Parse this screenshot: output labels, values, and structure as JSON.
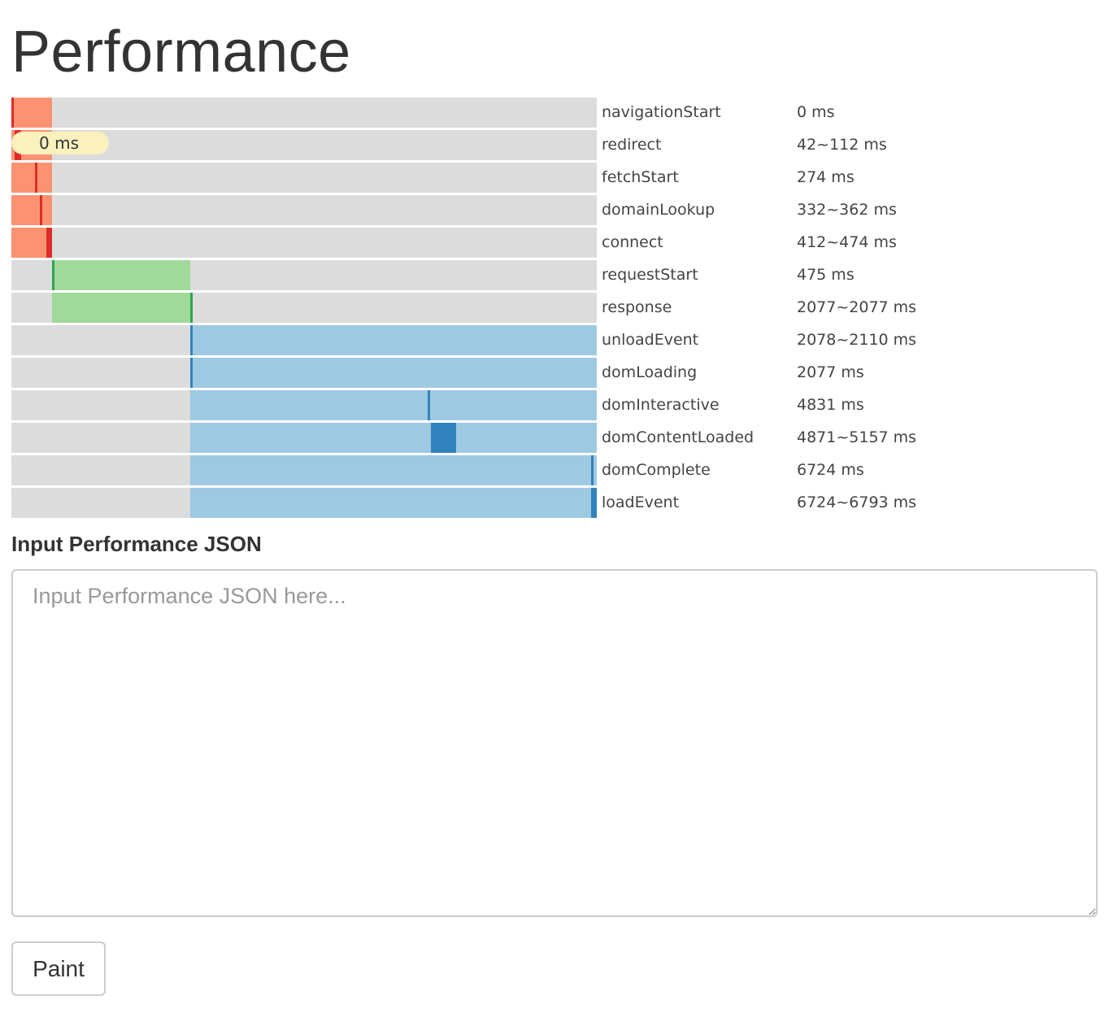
{
  "page_title": "Performance",
  "tooltip": "0 ms",
  "timing": [
    {
      "name": "navigationStart",
      "value": "0 ms",
      "group": "network",
      "start": 0,
      "end": 0
    },
    {
      "name": "redirect",
      "value": "42~112 ms",
      "group": "network",
      "start": 42,
      "end": 112
    },
    {
      "name": "fetchStart",
      "value": "274 ms",
      "group": "network",
      "start": 274,
      "end": 274
    },
    {
      "name": "domainLookup",
      "value": "332~362 ms",
      "group": "network",
      "start": 332,
      "end": 362
    },
    {
      "name": "connect",
      "value": "412~474 ms",
      "group": "network",
      "start": 412,
      "end": 474
    },
    {
      "name": "requestStart",
      "value": "475 ms",
      "group": "request",
      "start": 475,
      "end": 475
    },
    {
      "name": "response",
      "value": "2077~2077 ms",
      "group": "request",
      "start": 2077,
      "end": 2077
    },
    {
      "name": "unloadEvent",
      "value": "2078~2110 ms",
      "group": "dom",
      "start": 2078,
      "end": 2110
    },
    {
      "name": "domLoading",
      "value": "2077 ms",
      "group": "dom",
      "start": 2077,
      "end": 2077
    },
    {
      "name": "domInteractive",
      "value": "4831 ms",
      "group": "dom",
      "start": 4831,
      "end": 4831
    },
    {
      "name": "domContentLoaded",
      "value": "4871~5157 ms",
      "group": "dom",
      "start": 4871,
      "end": 5157
    },
    {
      "name": "domComplete",
      "value": "6724 ms",
      "group": "dom",
      "start": 6724,
      "end": 6724
    },
    {
      "name": "loadEvent",
      "value": "6724~6793 ms",
      "group": "dom",
      "start": 6724,
      "end": 6793
    }
  ],
  "phases": {
    "network": {
      "start": 0,
      "end": 475
    },
    "request": {
      "start": 475,
      "end": 2077
    },
    "dom": {
      "start": 2077,
      "end": 6793
    }
  },
  "colors": {
    "track": "#dcdcdc",
    "network_phase": "#fc9272",
    "network_mark": "#de2d26",
    "request_phase": "#a1d99b",
    "request_mark": "#31a354",
    "dom_phase": "#9ecae1",
    "dom_mark": "#3182bd"
  },
  "input": {
    "label": "Input Performance JSON",
    "placeholder": "Input Performance JSON here...",
    "value": ""
  },
  "paint_button": "Paint"
}
